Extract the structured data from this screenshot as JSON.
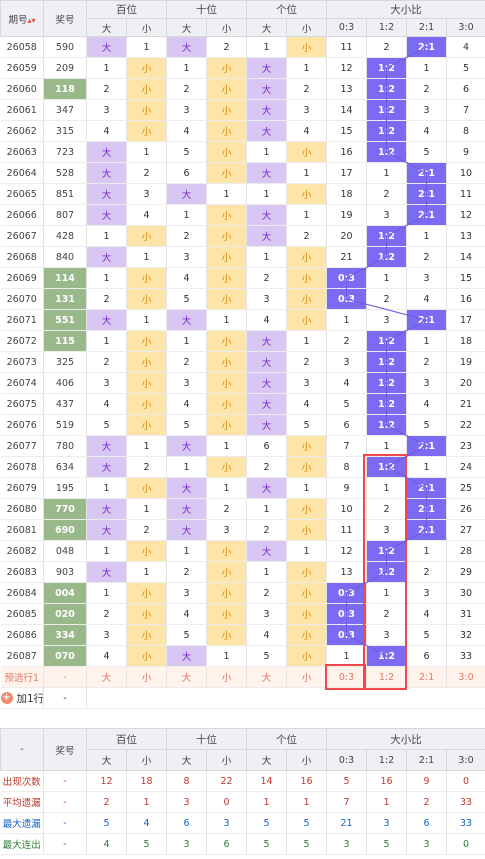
{
  "header": {
    "issue": "期号",
    "sort_icon": "▴▾",
    "prize": "奖号",
    "groups": [
      "百位",
      "十位",
      "个位",
      "大小比"
    ],
    "sub": [
      "大",
      "小",
      "大",
      "小",
      "大",
      "小",
      "0:3",
      "1:2",
      "2:1",
      "3:0"
    ]
  },
  "rows": [
    {
      "no": "26058",
      "num": "590",
      "g": false,
      "c": [
        [
          "大",
          1
        ],
        "1",
        [
          "大",
          1
        ],
        "2",
        "1",
        [
          "小",
          2
        ],
        "11",
        "2",
        [
          "2:1",
          3
        ],
        "4"
      ],
      "gs": true
    },
    {
      "no": "26059",
      "num": "209",
      "g": false,
      "c": [
        "1",
        [
          "小",
          2
        ],
        "1",
        [
          "小",
          2
        ],
        [
          "大",
          1
        ],
        "1",
        "12",
        [
          "1:2",
          3
        ],
        "1",
        "5"
      ]
    },
    {
      "no": "26060",
      "num": "118",
      "g": true,
      "c": [
        "2",
        [
          "小",
          2
        ],
        "2",
        [
          "小",
          2
        ],
        [
          "大",
          1
        ],
        "2",
        "13",
        [
          "1:2",
          3
        ],
        "2",
        "6"
      ]
    },
    {
      "no": "26061",
      "num": "347",
      "g": false,
      "c": [
        "3",
        [
          "小",
          2
        ],
        "3",
        [
          "小",
          2
        ],
        [
          "大",
          1
        ],
        "3",
        "14",
        [
          "1:2",
          3
        ],
        "3",
        "7"
      ]
    },
    {
      "no": "26062",
      "num": "315",
      "g": false,
      "c": [
        "4",
        [
          "小",
          2
        ],
        "4",
        [
          "小",
          2
        ],
        [
          "大",
          1
        ],
        "4",
        "15",
        [
          "1:2",
          3
        ],
        "4",
        "8"
      ]
    },
    {
      "no": "26063",
      "num": "723",
      "g": false,
      "c": [
        [
          "大",
          1
        ],
        "1",
        "5",
        [
          "小",
          2
        ],
        "1",
        [
          "小",
          2
        ],
        "16",
        [
          "1:2",
          3
        ],
        "5",
        "9"
      ],
      "gs": true
    },
    {
      "no": "26064",
      "num": "528",
      "g": false,
      "c": [
        [
          "大",
          1
        ],
        "2",
        "6",
        [
          "小",
          2
        ],
        [
          "大",
          1
        ],
        "1",
        "17",
        "1",
        [
          "2:1",
          3
        ],
        "10"
      ]
    },
    {
      "no": "26065",
      "num": "851",
      "g": false,
      "c": [
        [
          "大",
          1
        ],
        "3",
        [
          "大",
          1
        ],
        "1",
        "1",
        [
          "小",
          2
        ],
        "18",
        "2",
        [
          "2:1",
          3
        ],
        "11"
      ]
    },
    {
      "no": "26066",
      "num": "807",
      "g": false,
      "c": [
        [
          "大",
          1
        ],
        "4",
        "1",
        [
          "小",
          2
        ],
        [
          "大",
          1
        ],
        "1",
        "19",
        "3",
        [
          "2:1",
          3
        ],
        "12"
      ]
    },
    {
      "no": "26067",
      "num": "428",
      "g": false,
      "c": [
        "1",
        [
          "小",
          2
        ],
        "2",
        [
          "小",
          2
        ],
        [
          "大",
          1
        ],
        "2",
        "20",
        [
          "1:2",
          3
        ],
        "1",
        "13"
      ]
    },
    {
      "no": "26068",
      "num": "840",
      "g": false,
      "c": [
        [
          "大",
          1
        ],
        "1",
        "3",
        [
          "小",
          2
        ],
        "1",
        [
          "小",
          2
        ],
        "21",
        [
          "1:2",
          3
        ],
        "2",
        "14"
      ],
      "gs": true
    },
    {
      "no": "26069",
      "num": "114",
      "g": true,
      "c": [
        "1",
        [
          "小",
          2
        ],
        "4",
        [
          "小",
          2
        ],
        "2",
        [
          "小",
          2
        ],
        [
          "0:3",
          3
        ],
        "1",
        "3",
        "15"
      ]
    },
    {
      "no": "26070",
      "num": "131",
      "g": true,
      "c": [
        "2",
        [
          "小",
          2
        ],
        "5",
        [
          "小",
          2
        ],
        "3",
        [
          "小",
          2
        ],
        [
          "0:3",
          3
        ],
        "2",
        "4",
        "16"
      ]
    },
    {
      "no": "26071",
      "num": "551",
      "g": true,
      "c": [
        [
          "大",
          1
        ],
        "1",
        [
          "大",
          1
        ],
        "1",
        "4",
        [
          "小",
          2
        ],
        "1",
        "3",
        [
          "2:1",
          3
        ],
        "17"
      ]
    },
    {
      "no": "26072",
      "num": "115",
      "g": true,
      "c": [
        "1",
        [
          "小",
          2
        ],
        "1",
        [
          "小",
          2
        ],
        [
          "大",
          1
        ],
        "1",
        "2",
        [
          "1:2",
          3
        ],
        "1",
        "18"
      ]
    },
    {
      "no": "26073",
      "num": "325",
      "g": false,
      "c": [
        "2",
        [
          "小",
          2
        ],
        "2",
        [
          "小",
          2
        ],
        [
          "大",
          1
        ],
        "2",
        "3",
        [
          "1:2",
          3
        ],
        "2",
        "19"
      ],
      "gs": true
    },
    {
      "no": "26074",
      "num": "406",
      "g": false,
      "c": [
        "3",
        [
          "小",
          2
        ],
        "3",
        [
          "小",
          2
        ],
        [
          "大",
          1
        ],
        "3",
        "4",
        [
          "1:2",
          3
        ],
        "3",
        "20"
      ]
    },
    {
      "no": "26075",
      "num": "437",
      "g": false,
      "c": [
        "4",
        [
          "小",
          2
        ],
        "4",
        [
          "小",
          2
        ],
        [
          "大",
          1
        ],
        "4",
        "5",
        [
          "1:2",
          3
        ],
        "4",
        "21"
      ]
    },
    {
      "no": "26076",
      "num": "519",
      "g": false,
      "c": [
        "5",
        [
          "小",
          2
        ],
        "5",
        [
          "小",
          2
        ],
        [
          "大",
          1
        ],
        "5",
        "6",
        [
          "1:2",
          3
        ],
        "5",
        "22"
      ]
    },
    {
      "no": "26077",
      "num": "780",
      "g": false,
      "c": [
        [
          "大",
          1
        ],
        "1",
        [
          "大",
          1
        ],
        "1",
        "6",
        [
          "小",
          2
        ],
        "7",
        "1",
        [
          "2:1",
          3
        ],
        "23"
      ]
    },
    {
      "no": "26078",
      "num": "634",
      "g": false,
      "c": [
        [
          "大",
          1
        ],
        "2",
        "1",
        [
          "小",
          2
        ],
        "2",
        [
          "小",
          2
        ],
        "8",
        [
          "1:2",
          3
        ],
        "1",
        "24"
      ],
      "gs": true
    },
    {
      "no": "26079",
      "num": "195",
      "g": false,
      "c": [
        "1",
        [
          "小",
          2
        ],
        [
          "大",
          1
        ],
        "1",
        [
          "大",
          1
        ],
        "1",
        "9",
        "1",
        [
          "2:1",
          3
        ],
        "25"
      ]
    },
    {
      "no": "26080",
      "num": "770",
      "g": true,
      "c": [
        [
          "大",
          1
        ],
        "1",
        [
          "大",
          1
        ],
        "2",
        "1",
        [
          "小",
          2
        ],
        "10",
        "2",
        [
          "2:1",
          3
        ],
        "26"
      ]
    },
    {
      "no": "26081",
      "num": "690",
      "g": true,
      "c": [
        [
          "大",
          1
        ],
        "2",
        [
          "大",
          1
        ],
        "3",
        "2",
        [
          "小",
          2
        ],
        "11",
        "3",
        [
          "2:1",
          3
        ],
        "27"
      ]
    },
    {
      "no": "26082",
      "num": "048",
      "g": false,
      "c": [
        "1",
        [
          "小",
          2
        ],
        "1",
        [
          "小",
          2
        ],
        [
          "大",
          1
        ],
        "1",
        "12",
        [
          "1:2",
          3
        ],
        "1",
        "28"
      ]
    },
    {
      "no": "26083",
      "num": "903",
      "g": false,
      "c": [
        [
          "大",
          1
        ],
        "1",
        "2",
        [
          "小",
          2
        ],
        "1",
        [
          "小",
          2
        ],
        "13",
        [
          "1:2",
          3
        ],
        "2",
        "29"
      ],
      "gs": true
    },
    {
      "no": "26084",
      "num": "004",
      "g": true,
      "c": [
        "1",
        [
          "小",
          2
        ],
        "3",
        [
          "小",
          2
        ],
        "2",
        [
          "小",
          2
        ],
        [
          "0:3",
          3
        ],
        "1",
        "3",
        "30"
      ]
    },
    {
      "no": "26085",
      "num": "020",
      "g": true,
      "c": [
        "2",
        [
          "小",
          2
        ],
        "4",
        [
          "小",
          2
        ],
        "3",
        [
          "小",
          2
        ],
        [
          "0:3",
          3
        ],
        "2",
        "4",
        "31"
      ]
    },
    {
      "no": "26086",
      "num": "334",
      "g": true,
      "c": [
        "3",
        [
          "小",
          2
        ],
        "5",
        [
          "小",
          2
        ],
        "4",
        [
          "小",
          2
        ],
        [
          "0:3",
          3
        ],
        "3",
        "5",
        "32"
      ]
    },
    {
      "no": "26087",
      "num": "070",
      "g": true,
      "c": [
        "4",
        [
          "小",
          2
        ],
        [
          "大",
          1
        ],
        "1",
        "5",
        [
          "小",
          2
        ],
        "1",
        [
          "1:2",
          3
        ],
        "6",
        "33"
      ]
    }
  ],
  "predict": {
    "label": "预选行1",
    "num": "-",
    "cells": [
      "大",
      "小",
      "大",
      "小",
      "大",
      "小",
      "0:3",
      "1:2",
      "2:1",
      "3:0"
    ]
  },
  "add_row": {
    "label": "加1行",
    "icon": "+",
    "num": "-"
  },
  "stats": {
    "dash": "-",
    "prize": "奖号",
    "groups": [
      "百位",
      "十位",
      "个位",
      "大小比"
    ],
    "sub": [
      "大",
      "小",
      "大",
      "小",
      "大",
      "小",
      "0:3",
      "1:2",
      "2:1",
      "3:0"
    ],
    "rows": [
      {
        "label": "出现次数",
        "num": "-",
        "v": [
          "12",
          "18",
          "8",
          "22",
          "14",
          "16",
          "5",
          "16",
          "9",
          "0"
        ]
      },
      {
        "label": "平均遗漏",
        "num": "-",
        "v": [
          "2",
          "1",
          "3",
          "0",
          "1",
          "1",
          "7",
          "1",
          "2",
          "33"
        ]
      },
      {
        "label": "最大遗漏",
        "num": "-",
        "v": [
          "5",
          "4",
          "6",
          "3",
          "5",
          "5",
          "21",
          "3",
          "6",
          "33"
        ]
      },
      {
        "label": "最大连出",
        "num": "-",
        "v": [
          "4",
          "5",
          "3",
          "6",
          "5",
          "5",
          "3",
          "5",
          "3",
          "0"
        ]
      }
    ]
  },
  "colors": {
    "big": "#d8c6f3",
    "small": "#fde4a8",
    "ratio": "#7a6bf2",
    "prize_green": "#9ab98b",
    "highlight_box": "#f2474b"
  }
}
